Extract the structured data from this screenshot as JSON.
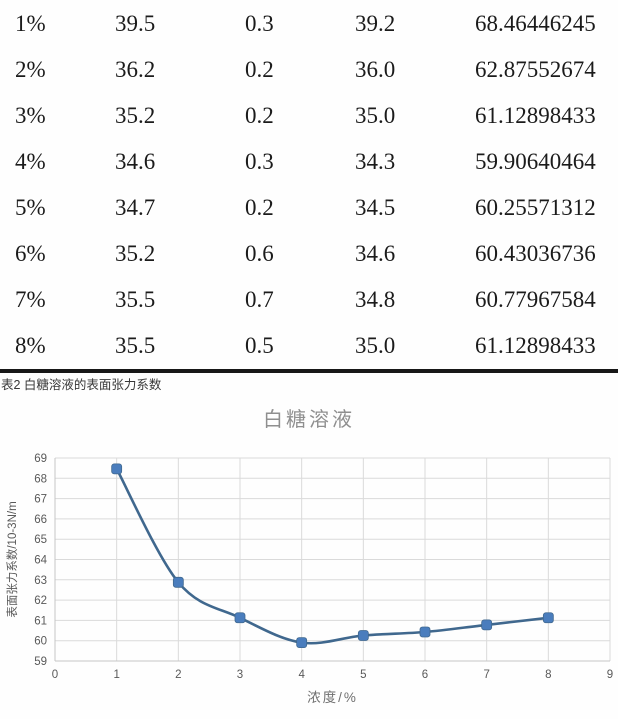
{
  "table": {
    "rows": [
      [
        "1%",
        "39.5",
        "0.3",
        "39.2",
        "68.46446245"
      ],
      [
        "2%",
        "36.2",
        "0.2",
        "36.0",
        "62.87552674"
      ],
      [
        "3%",
        "35.2",
        "0.2",
        "35.0",
        "61.12898433"
      ],
      [
        "4%",
        "34.6",
        "0.3",
        "34.3",
        "59.90640464"
      ],
      [
        "5%",
        "34.7",
        "0.2",
        "34.5",
        "60.25571312"
      ],
      [
        "6%",
        "35.2",
        "0.6",
        "34.6",
        "60.43036736"
      ],
      [
        "7%",
        "35.5",
        "0.7",
        "34.8",
        "60.77967584"
      ],
      [
        "8%",
        "35.5",
        "0.5",
        "35.0",
        "61.12898433"
      ]
    ]
  },
  "caption": "表2 白糖溶液的表面张力系数",
  "chart_data": {
    "type": "line",
    "title": "白糖溶液",
    "xlabel": "浓度/%",
    "ylabel": "表面张力系数/10-3N/m",
    "x": [
      1,
      2,
      3,
      4,
      5,
      6,
      7,
      8
    ],
    "series": [
      {
        "name": "白糖溶液",
        "values": [
          68.46446245,
          62.87552674,
          61.12898433,
          59.90640464,
          60.25571312,
          60.43036736,
          60.77967584,
          61.12898433
        ]
      }
    ],
    "xlim": [
      0,
      9
    ],
    "ylim": [
      59,
      69
    ],
    "xticks": [
      0,
      1,
      2,
      3,
      4,
      5,
      6,
      7,
      8,
      9
    ],
    "yticks": [
      59,
      60,
      61,
      62,
      63,
      64,
      65,
      66,
      67,
      68,
      69
    ],
    "grid": true,
    "legend": "none",
    "colors": {
      "line": "#40688e",
      "marker": "#4a7dbd",
      "grid": "#dadada",
      "axis": "#c6c6c6",
      "tick": "#595959",
      "axis_label": "#6f6f6f",
      "title": "#8f8f8f"
    }
  }
}
